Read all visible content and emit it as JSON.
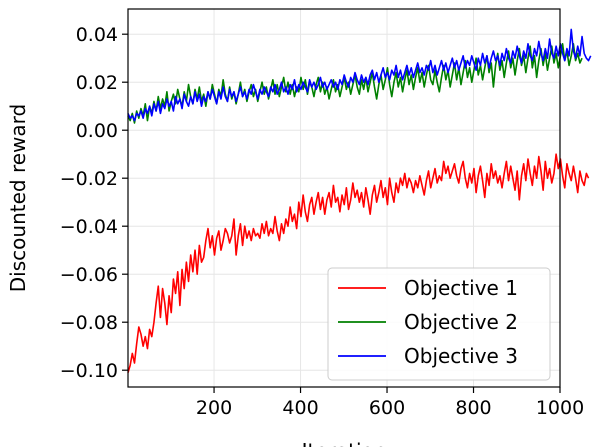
{
  "chart_data": {
    "type": "line",
    "title": "",
    "xlabel": "Iteration",
    "ylabel": "Discounted reward",
    "xlim": [
      1,
      1000
    ],
    "ylim": [
      -0.107,
      0.0505
    ],
    "xticks": [
      200,
      400,
      600,
      800,
      1000
    ],
    "yticks": [
      -0.1,
      -0.08,
      -0.06,
      -0.04,
      -0.02,
      0.0,
      0.02,
      0.04
    ],
    "ytick_labels": [
      "−0.10",
      "−0.08",
      "−0.06",
      "−0.04",
      "−0.02",
      "0.00",
      "0.02",
      "0.04"
    ],
    "grid": true,
    "legend_position": "bottom-right",
    "x_step": 5,
    "series": [
      {
        "name": "Objective 1",
        "color": "#ff0000",
        "values": [
          -0.101,
          -0.098,
          -0.093,
          -0.097,
          -0.089,
          -0.082,
          -0.085,
          -0.09,
          -0.086,
          -0.091,
          -0.083,
          -0.086,
          -0.08,
          -0.072,
          -0.065,
          -0.078,
          -0.066,
          -0.072,
          -0.081,
          -0.069,
          -0.076,
          -0.062,
          -0.068,
          -0.059,
          -0.073,
          -0.058,
          -0.066,
          -0.055,
          -0.063,
          -0.052,
          -0.059,
          -0.05,
          -0.06,
          -0.048,
          -0.055,
          -0.053,
          -0.046,
          -0.041,
          -0.049,
          -0.044,
          -0.052,
          -0.045,
          -0.042,
          -0.05,
          -0.046,
          -0.041,
          -0.043,
          -0.047,
          -0.044,
          -0.037,
          -0.052,
          -0.044,
          -0.039,
          -0.048,
          -0.04,
          -0.045,
          -0.042,
          -0.046,
          -0.041,
          -0.044,
          -0.043,
          -0.045,
          -0.039,
          -0.043,
          -0.038,
          -0.044,
          -0.041,
          -0.043,
          -0.036,
          -0.042,
          -0.046,
          -0.039,
          -0.043,
          -0.037,
          -0.04,
          -0.032,
          -0.038,
          -0.035,
          -0.041,
          -0.03,
          -0.036,
          -0.027,
          -0.034,
          -0.038,
          -0.031,
          -0.028,
          -0.035,
          -0.03,
          -0.026,
          -0.033,
          -0.028,
          -0.035,
          -0.029,
          -0.026,
          -0.032,
          -0.023,
          -0.03,
          -0.028,
          -0.034,
          -0.027,
          -0.031,
          -0.024,
          -0.033,
          -0.029,
          -0.022,
          -0.028,
          -0.025,
          -0.03,
          -0.026,
          -0.032,
          -0.024,
          -0.029,
          -0.035,
          -0.027,
          -0.023,
          -0.03,
          -0.026,
          -0.021,
          -0.028,
          -0.024,
          -0.031,
          -0.02,
          -0.026,
          -0.03,
          -0.022,
          -0.026,
          -0.02,
          -0.023,
          -0.018,
          -0.024,
          -0.02,
          -0.022,
          -0.026,
          -0.021,
          -0.024,
          -0.019,
          -0.023,
          -0.027,
          -0.021,
          -0.017,
          -0.024,
          -0.02,
          -0.016,
          -0.022,
          -0.019,
          -0.021,
          -0.013,
          -0.018,
          -0.015,
          -0.02,
          -0.017,
          -0.014,
          -0.019,
          -0.022,
          -0.016,
          -0.013,
          -0.02,
          -0.024,
          -0.018,
          -0.022,
          -0.016,
          -0.026,
          -0.019,
          -0.015,
          -0.021,
          -0.028,
          -0.018,
          -0.023,
          -0.014,
          -0.02,
          -0.017,
          -0.022,
          -0.019,
          -0.024,
          -0.018,
          -0.013,
          -0.021,
          -0.015,
          -0.02,
          -0.025,
          -0.017,
          -0.029,
          -0.019,
          -0.014,
          -0.021,
          -0.012,
          -0.018,
          -0.023,
          -0.015,
          -0.02,
          -0.011,
          -0.017,
          -0.025,
          -0.013,
          -0.02,
          -0.016,
          -0.022,
          -0.018,
          -0.01,
          -0.016,
          -0.012,
          -0.019,
          -0.024,
          -0.014,
          -0.018,
          -0.021,
          -0.015,
          -0.02,
          -0.026,
          -0.017,
          -0.021,
          -0.023,
          -0.018,
          -0.02
        ]
      },
      {
        "name": "Objective 2",
        "color": "#008000",
        "values": [
          0.006,
          0.004,
          0.007,
          0.003,
          0.008,
          0.005,
          0.009,
          0.006,
          0.011,
          0.004,
          0.01,
          0.007,
          0.012,
          0.008,
          0.014,
          0.009,
          0.013,
          0.01,
          0.016,
          0.008,
          0.012,
          0.015,
          0.011,
          0.017,
          0.013,
          0.01,
          0.016,
          0.012,
          0.019,
          0.014,
          0.011,
          0.017,
          0.013,
          0.018,
          0.012,
          0.015,
          0.01,
          0.016,
          0.013,
          0.019,
          0.015,
          0.011,
          0.017,
          0.014,
          0.021,
          0.015,
          0.012,
          0.018,
          0.013,
          0.016,
          0.011,
          0.015,
          0.02,
          0.014,
          0.017,
          0.012,
          0.016,
          0.019,
          0.014,
          0.017,
          0.012,
          0.016,
          0.02,
          0.015,
          0.018,
          0.013,
          0.017,
          0.021,
          0.015,
          0.019,
          0.014,
          0.018,
          0.022,
          0.016,
          0.02,
          0.015,
          0.019,
          0.014,
          0.018,
          0.016,
          0.022,
          0.017,
          0.021,
          0.015,
          0.02,
          0.018,
          0.014,
          0.019,
          0.022,
          0.016,
          0.02,
          0.015,
          0.018,
          0.013,
          0.017,
          0.021,
          0.016,
          0.019,
          0.014,
          0.018,
          0.022,
          0.017,
          0.02,
          0.015,
          0.019,
          0.023,
          0.018,
          0.015,
          0.021,
          0.017,
          0.022,
          0.016,
          0.02,
          0.024,
          0.018,
          0.013,
          0.019,
          0.023,
          0.017,
          0.021,
          0.026,
          0.019,
          0.014,
          0.02,
          0.024,
          0.018,
          0.022,
          0.016,
          0.021,
          0.025,
          0.019,
          0.023,
          0.017,
          0.022,
          0.026,
          0.02,
          0.024,
          0.018,
          0.023,
          0.027,
          0.021,
          0.019,
          0.025,
          0.02,
          0.016,
          0.022,
          0.027,
          0.021,
          0.025,
          0.018,
          0.023,
          0.028,
          0.021,
          0.026,
          0.019,
          0.024,
          0.029,
          0.022,
          0.026,
          0.02,
          0.025,
          0.03,
          0.023,
          0.027,
          0.021,
          0.026,
          0.031,
          0.024,
          0.028,
          0.018,
          0.027,
          0.032,
          0.025,
          0.029,
          0.022,
          0.028,
          0.033,
          0.026,
          0.03,
          0.023,
          0.029,
          0.034,
          0.027,
          0.031,
          0.024,
          0.03,
          0.035,
          0.026,
          0.031,
          0.022,
          0.029,
          0.034,
          0.027,
          0.032,
          0.025,
          0.03,
          0.035,
          0.028,
          0.032,
          0.026,
          0.031,
          0.036,
          0.029,
          0.033,
          0.027,
          0.031,
          0.036,
          0.029,
          0.032,
          0.028,
          0.03
        ]
      },
      {
        "name": "Objective 3",
        "color": "#0000ff",
        "values": [
          0.007,
          0.005,
          0.006,
          0.004,
          0.007,
          0.006,
          0.008,
          0.005,
          0.009,
          0.007,
          0.01,
          0.006,
          0.011,
          0.008,
          0.012,
          0.007,
          0.011,
          0.009,
          0.013,
          0.01,
          0.012,
          0.008,
          0.014,
          0.011,
          0.013,
          0.009,
          0.015,
          0.012,
          0.01,
          0.014,
          0.011,
          0.016,
          0.012,
          0.015,
          0.01,
          0.014,
          0.012,
          0.016,
          0.013,
          0.017,
          0.014,
          0.011,
          0.016,
          0.013,
          0.018,
          0.014,
          0.012,
          0.017,
          0.014,
          0.016,
          0.012,
          0.015,
          0.018,
          0.014,
          0.016,
          0.013,
          0.017,
          0.015,
          0.019,
          0.016,
          0.013,
          0.017,
          0.015,
          0.018,
          0.016,
          0.014,
          0.018,
          0.016,
          0.019,
          0.015,
          0.017,
          0.02,
          0.016,
          0.018,
          0.015,
          0.019,
          0.017,
          0.021,
          0.016,
          0.019,
          0.017,
          0.02,
          0.018,
          0.016,
          0.021,
          0.018,
          0.02,
          0.017,
          0.019,
          0.022,
          0.018,
          0.02,
          0.017,
          0.019,
          0.021,
          0.018,
          0.02,
          0.017,
          0.021,
          0.019,
          0.023,
          0.02,
          0.018,
          0.022,
          0.02,
          0.024,
          0.021,
          0.019,
          0.023,
          0.02,
          0.022,
          0.019,
          0.023,
          0.025,
          0.021,
          0.024,
          0.02,
          0.023,
          0.026,
          0.022,
          0.024,
          0.021,
          0.025,
          0.023,
          0.027,
          0.022,
          0.025,
          0.021,
          0.024,
          0.027,
          0.023,
          0.026,
          0.022,
          0.025,
          0.028,
          0.024,
          0.026,
          0.023,
          0.027,
          0.025,
          0.029,
          0.024,
          0.027,
          0.023,
          0.026,
          0.029,
          0.025,
          0.028,
          0.024,
          0.027,
          0.03,
          0.026,
          0.029,
          0.025,
          0.028,
          0.031,
          0.026,
          0.029,
          0.027,
          0.031,
          0.028,
          0.025,
          0.03,
          0.027,
          0.032,
          0.028,
          0.031,
          0.026,
          0.03,
          0.033,
          0.029,
          0.031,
          0.027,
          0.032,
          0.029,
          0.034,
          0.03,
          0.028,
          0.033,
          0.03,
          0.035,
          0.031,
          0.028,
          0.033,
          0.03,
          0.036,
          0.031,
          0.029,
          0.034,
          0.031,
          0.037,
          0.032,
          0.029,
          0.034,
          0.03,
          0.038,
          0.032,
          0.03,
          0.035,
          0.031,
          0.036,
          0.032,
          0.029,
          0.034,
          0.031,
          0.042,
          0.033,
          0.03,
          0.035,
          0.031,
          0.039,
          0.032,
          0.03,
          0.029,
          0.031
        ]
      }
    ]
  }
}
